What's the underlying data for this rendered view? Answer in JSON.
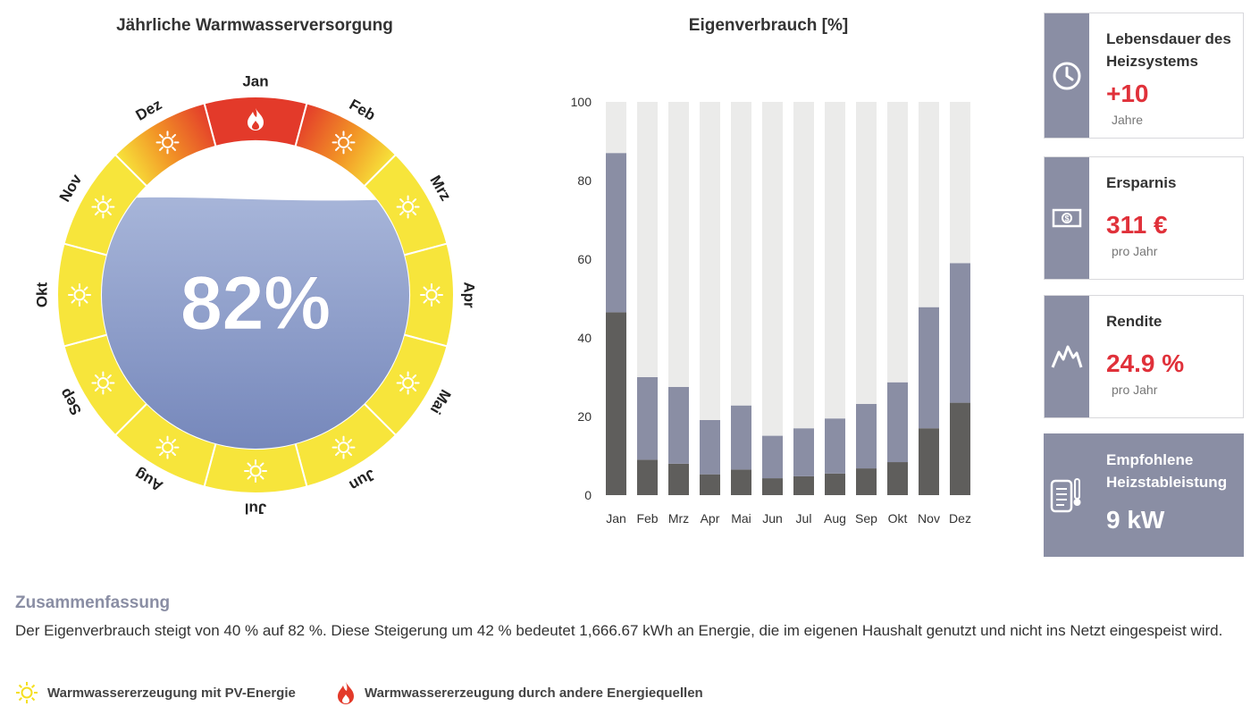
{
  "ring": {
    "title": "Jährliche Warmwasserversorgung",
    "percentage": "82%",
    "fill_level": 0.82,
    "months": [
      {
        "label": "Jan",
        "source": "other"
      },
      {
        "label": "Feb",
        "source": "mixed"
      },
      {
        "label": "Mrz",
        "source": "pv"
      },
      {
        "label": "Apr",
        "source": "pv"
      },
      {
        "label": "Mai",
        "source": "pv"
      },
      {
        "label": "Jun",
        "source": "pv"
      },
      {
        "label": "Jul",
        "source": "pv"
      },
      {
        "label": "Aug",
        "source": "pv"
      },
      {
        "label": "Sep",
        "source": "pv"
      },
      {
        "label": "Okt",
        "source": "pv"
      },
      {
        "label": "Nov",
        "source": "pv"
      },
      {
        "label": "Dez",
        "source": "mixed"
      }
    ],
    "colors": {
      "pv": "#f7e53b",
      "other": "#e33a2a",
      "mixed": "#f29526",
      "water_top": "#a7b5d9",
      "water_bottom": "#7486ba"
    }
  },
  "chart_data": {
    "type": "bar",
    "title": "Eigenverbrauch [%]",
    "categories": [
      "Jan",
      "Feb",
      "Mrz",
      "Apr",
      "Mai",
      "Jun",
      "Jul",
      "Aug",
      "Sep",
      "Okt",
      "Nov",
      "Dez"
    ],
    "ylim": [
      0,
      100
    ],
    "yticks": [
      0,
      20,
      40,
      60,
      80,
      100
    ],
    "series": [
      {
        "values": [
          46.5,
          9,
          8,
          5.3,
          6.5,
          4.3,
          4.8,
          5.5,
          6.8,
          8.4,
          17,
          23.5
        ],
        "color": "#5f5e5c"
      },
      {
        "values": [
          40.5,
          21,
          19.5,
          13.8,
          16.3,
          10.8,
          12.2,
          14,
          16.4,
          20.3,
          30.8,
          35.5
        ],
        "color": "#8a8ea4"
      },
      {
        "values": [
          13,
          70,
          72.5,
          80.9,
          77.2,
          84.9,
          83,
          80.5,
          76.8,
          71.3,
          52.2,
          41
        ],
        "color": "#ebebea"
      }
    ],
    "grid": false,
    "legend": "none"
  },
  "cards": [
    {
      "label": "Lebensdauer des Heizsystems",
      "value": "+10",
      "unit": "Jahre",
      "icon": "clock-icon"
    },
    {
      "label": "Ersparnis",
      "value": "311 €",
      "unit": "pro Jahr",
      "icon": "money-icon"
    },
    {
      "label": "Rendite",
      "value": "24.9 %",
      "unit": "pro Jahr",
      "icon": "mountain-chart-icon"
    },
    {
      "label": "Empfohlene Heizstableistung",
      "value": "9 kW",
      "icon": "heater-thermometer-icon"
    }
  ],
  "summary": {
    "title": "Zusammenfassung",
    "text": "Der Eigenverbrauch steigt von 40 % auf 82 %. Diese Steigerung um 42 % bedeutet 1,666.67 kWh an Energie, die im eigenen Haushalt genutzt und nicht ins Netzt eingespeist wird."
  },
  "legend": {
    "pv": "Warmwassererzeugung mit PV-Energie",
    "other": "Warmwassererzeugung durch andere Energiequellen"
  }
}
